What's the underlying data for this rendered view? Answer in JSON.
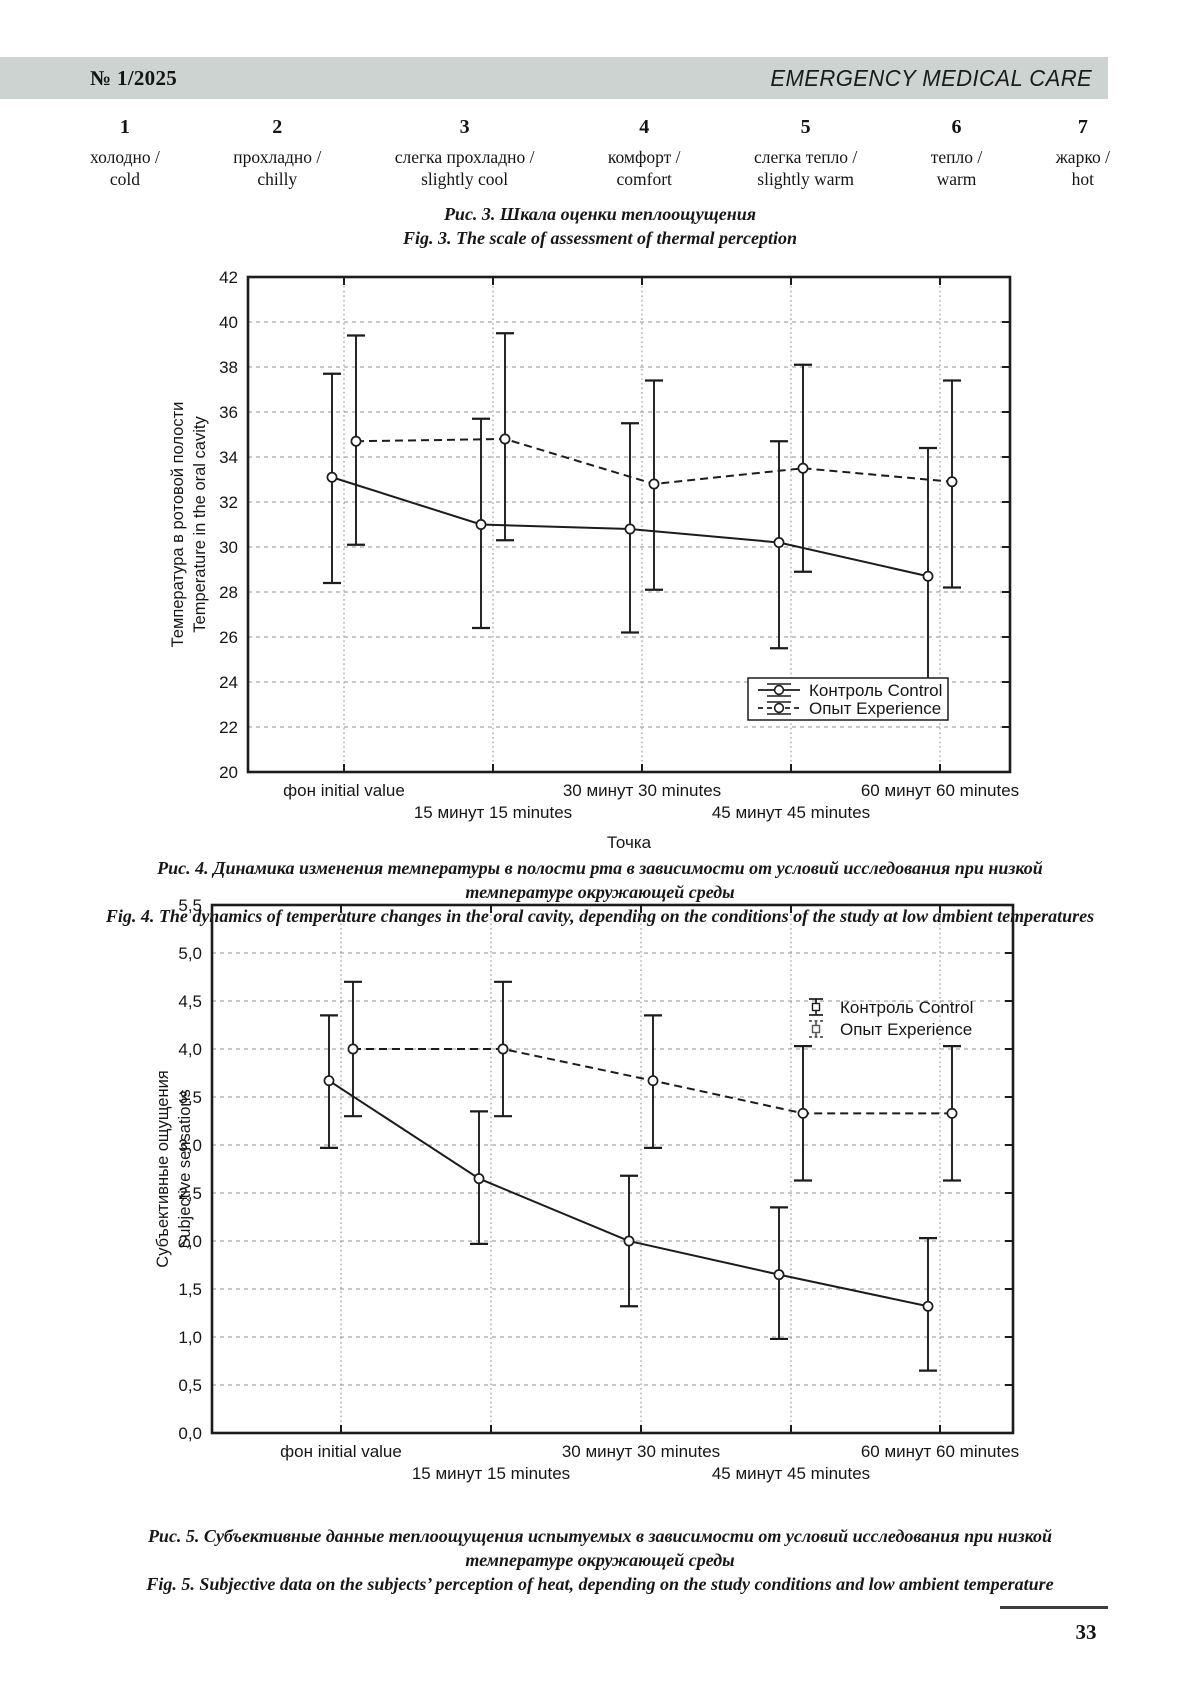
{
  "header": {
    "issue": "№ 1/2025",
    "journal": "EMERGENCY MEDICAL CARE"
  },
  "scale": {
    "items": [
      {
        "value": "1",
        "ru": "холодно /",
        "en": "cold"
      },
      {
        "value": "2",
        "ru": "прохладно /",
        "en": "chilly"
      },
      {
        "value": "3",
        "ru": "слегка прохладно /",
        "en": "slightly cool"
      },
      {
        "value": "4",
        "ru": "комфорт /",
        "en": "comfort"
      },
      {
        "value": "5",
        "ru": "слегка тепло /",
        "en": "slightly warm"
      },
      {
        "value": "6",
        "ru": "тепло /",
        "en": "warm"
      },
      {
        "value": "7",
        "ru": "жарко /",
        "en": "hot"
      }
    ]
  },
  "fig3_caption": {
    "ru": "Рис. 3. Шкала оценки теплоощущения",
    "en": "Fig. 3. The scale of assessment of thermal perception"
  },
  "fig4_caption": {
    "ru": "Рис. 4. Динамика изменения температуры в полости рта в зависимости от условий исследования при низкой температуре окружающей среды",
    "en": "Fig. 4. The dynamics of temperature changes in the oral cavity, depending on the conditions of the study at low ambient temperatures"
  },
  "fig5_caption": {
    "ru": "Рис. 5. Субъективные данные теплоощущения испытуемых в зависимости от условий исследования при низкой температуре окружающей среды",
    "en": "Fig. 5. Subjective data on the subjects’ perception of heat, depending on the study conditions and low ambient temperature"
  },
  "page_number": "33",
  "ink_color": "#1c1c1c",
  "grid_color": "#929292",
  "band_color": "#ccd3d0",
  "chart_data": [
    {
      "type": "line",
      "title": "",
      "categories": [
        "фон initial value",
        "15 минут 15 minutes",
        "30 минут 30 minutes",
        "45 минут 45 minutes",
        "60 минут 60 minutes"
      ],
      "xlabel": "Точка",
      "ylabel_ru": "Температура в ротовой полости",
      "ylabel_en": "Temperature in the oral cavity",
      "ylim": [
        20,
        42
      ],
      "ytick_step": 2,
      "ytick_labels": [
        "20",
        "22",
        "24",
        "26",
        "28",
        "30",
        "32",
        "34",
        "36",
        "38",
        "40",
        "42"
      ],
      "grid": true,
      "legend_position": "bottom-right",
      "legend_boxed": true,
      "series": [
        {
          "name": "Контроль Control",
          "line": "solid",
          "marker": "circle",
          "values": [
            33.1,
            31.0,
            30.8,
            30.2,
            28.7
          ],
          "err_low": [
            28.4,
            26.4,
            26.2,
            25.5,
            23.0
          ],
          "err_high": [
            37.7,
            35.7,
            35.5,
            34.7,
            34.4
          ]
        },
        {
          "name": "Опыт Experience",
          "line": "dashed",
          "marker": "circle",
          "values": [
            34.7,
            34.8,
            32.8,
            33.5,
            32.9
          ],
          "err_low": [
            30.1,
            30.3,
            28.1,
            28.9,
            28.2
          ],
          "err_high": [
            39.4,
            39.5,
            37.4,
            38.1,
            37.4
          ]
        }
      ]
    },
    {
      "type": "line",
      "title": "",
      "categories": [
        "фон initial value",
        "15 минут 15 minutes",
        "30 минут 30 minutes",
        "45 минут 45 minutes",
        "60 минут 60 minutes"
      ],
      "xlabel": "",
      "ylabel_ru": "Субъективные ощущения",
      "ylabel_en": "Subjective sensations",
      "ylim": [
        0,
        5.5
      ],
      "ytick_step": 0.5,
      "ytick_labels": [
        "0,0",
        "0,5",
        "1,0",
        "1,5",
        "2,0",
        "2,5",
        "3,0",
        "3,5",
        "4,0",
        "4,5",
        "5,0",
        "5,5"
      ],
      "decimal_comma": true,
      "grid": true,
      "legend_position": "top-right",
      "legend_boxed": false,
      "series": [
        {
          "name": "Контроль Control",
          "line": "solid",
          "marker": "circle",
          "values": [
            3.67,
            2.65,
            2.0,
            1.65,
            1.32
          ],
          "err_low": [
            2.97,
            1.97,
            1.32,
            0.98,
            0.65
          ],
          "err_high": [
            4.35,
            3.35,
            2.68,
            2.35,
            2.03
          ]
        },
        {
          "name": "Опыт Experience",
          "line": "dashed",
          "marker": "circle",
          "values": [
            4.0,
            4.0,
            3.67,
            3.33,
            3.33
          ],
          "err_low": [
            3.3,
            3.3,
            2.97,
            2.63,
            2.63
          ],
          "err_high": [
            4.7,
            4.7,
            4.35,
            4.03,
            4.03
          ]
        }
      ]
    }
  ]
}
